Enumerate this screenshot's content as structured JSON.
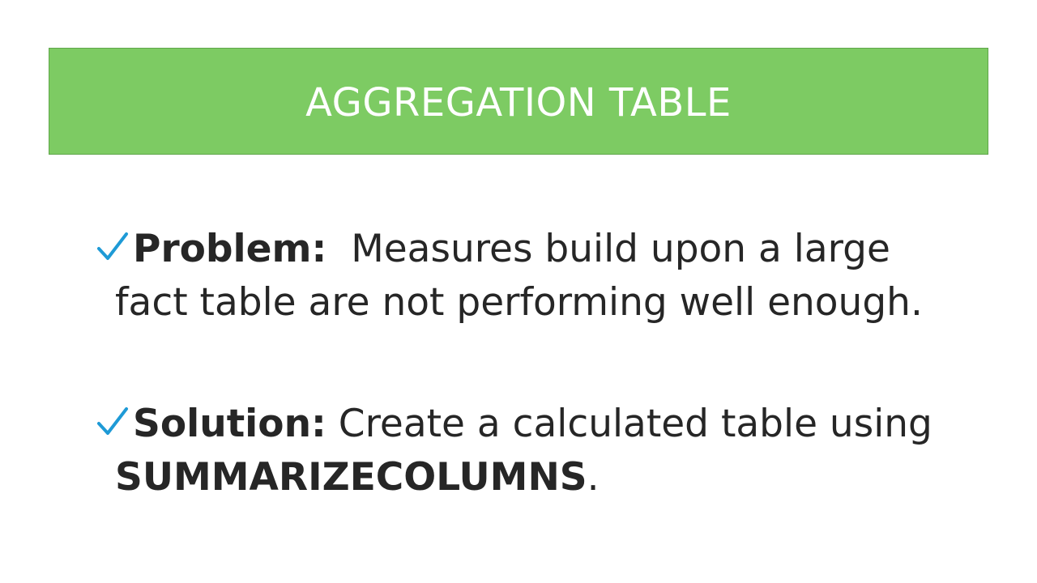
{
  "slide": {
    "title": "AGGREGATION TABLE",
    "bullets": [
      {
        "lead": "Problem:",
        "line1_rest": "Measures build upon a large",
        "line2": "fact table are not performing well enough."
      },
      {
        "lead": "Solution:",
        "line1_rest": "Create a calculated table using",
        "line2_bold": "SUMMARIZECOLUMNS",
        "line2_end": "."
      }
    ]
  },
  "colors": {
    "title_bar": "#7dcb63",
    "title_text": "#ffffff",
    "body_text": "#262626",
    "check_mark": "#1e9ad6"
  },
  "icons": {
    "bullet_marker": "check-mark-icon"
  }
}
